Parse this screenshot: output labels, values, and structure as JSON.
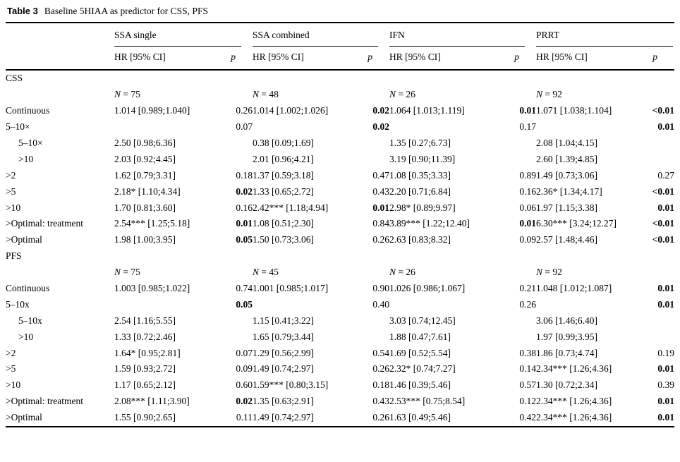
{
  "caption": {
    "label": "Table 3",
    "text": "Baseline 5HIAA as predictor for CSS, PFS"
  },
  "columns": {
    "groups": [
      "SSA single",
      "SSA combined",
      "IFN",
      "PRRT"
    ],
    "hr_header": "HR [95% CI]",
    "p_header": "p"
  },
  "sections": [
    {
      "label": "CSS",
      "n_values": [
        "N = 75",
        "N = 48",
        "N = 26",
        "N = 92"
      ],
      "rows": [
        {
          "label": "Continuous",
          "indent": false,
          "cells": [
            {
              "hr": "1.014 [0.989;1.040]",
              "p": "0.26",
              "bold": false
            },
            {
              "hr": "1.014 [1.002;1.026]",
              "p": "0.02",
              "bold": true
            },
            {
              "hr": "1.064 [1.013;1.119]",
              "p": "0.01",
              "bold": true
            },
            {
              "hr": "1.071 [1.038;1.104]",
              "p": "<0.01",
              "bold": true
            }
          ]
        },
        {
          "label": "5–10×",
          "indent": false,
          "cells": [
            {
              "hr": "",
              "p": "0.07",
              "bold": false
            },
            {
              "hr": "",
              "p": "0.02",
              "bold": true
            },
            {
              "hr": "",
              "p": "0.17",
              "bold": false
            },
            {
              "hr": "",
              "p": "0.01",
              "bold": true
            }
          ]
        },
        {
          "label": "5–10×",
          "indent": true,
          "cells": [
            {
              "hr": "2.50 [0.98;6.36]",
              "p": "",
              "bold": false
            },
            {
              "hr": "0.38 [0.09;1.69]",
              "p": "",
              "bold": false
            },
            {
              "hr": "1.35 [0.27;6.73]",
              "p": "",
              "bold": false
            },
            {
              "hr": "2.08 [1.04;4.15]",
              "p": "",
              "bold": false
            }
          ]
        },
        {
          "label": ">10",
          "indent": true,
          "cells": [
            {
              "hr": "2.03 [0.92;4.45]",
              "p": "",
              "bold": false
            },
            {
              "hr": "2.01 [0.96;4.21]",
              "p": "",
              "bold": false
            },
            {
              "hr": "3.19 [0.90;11.39]",
              "p": "",
              "bold": false
            },
            {
              "hr": "2.60 [1.39;4.85]",
              "p": "",
              "bold": false
            }
          ]
        },
        {
          "label": ">2",
          "indent": false,
          "cells": [
            {
              "hr": "1.62 [0.79;3.31]",
              "p": "0.18",
              "bold": false
            },
            {
              "hr": "1.37 [0.59;3.18]",
              "p": "0.47",
              "bold": false
            },
            {
              "hr": "1.08 [0.35;3.33]",
              "p": "0.89",
              "bold": false
            },
            {
              "hr": "1.49 [0.73;3.06]",
              "p": "0.27",
              "bold": false
            }
          ]
        },
        {
          "label": ">5",
          "indent": false,
          "cells": [
            {
              "hr": "2.18* [1.10;4.34]",
              "p": "0.02",
              "bold": true
            },
            {
              "hr": "1.33 [0.65;2.72]",
              "p": "0.43",
              "bold": false
            },
            {
              "hr": "2.20 [0.71;6.84]",
              "p": "0.16",
              "bold": false
            },
            {
              "hr": "2.36* [1.34;4.17]",
              "p": "<0.01",
              "bold": true
            }
          ]
        },
        {
          "label": ">10",
          "indent": false,
          "cells": [
            {
              "hr": "1.70 [0.81;3.60]",
              "p": "0.16",
              "bold": false
            },
            {
              "hr": "2.42*** [1.18;4.94]",
              "p": "0.01",
              "bold": true
            },
            {
              "hr": "2.98* [0.89;9.97]",
              "p": "0.06",
              "bold": false
            },
            {
              "hr": "1.97 [1.15;3.38]",
              "p": "0.01",
              "bold": true
            }
          ]
        },
        {
          "label": ">Optimal: treatment",
          "indent": false,
          "cells": [
            {
              "hr": "2.54*** [1.25;5.18]",
              "p": "0.01",
              "bold": true
            },
            {
              "hr": "1.08 [0.51;2.30]",
              "p": "0.84",
              "bold": false
            },
            {
              "hr": "3.89*** [1.22;12.40]",
              "p": "0.01",
              "bold": true
            },
            {
              "hr": "6.30*** [3.24;12.27]",
              "p": "<0.01",
              "bold": true
            }
          ]
        },
        {
          "label": ">Optimal",
          "indent": false,
          "cells": [
            {
              "hr": "1.98 [1.00;3.95]",
              "p": "0.05",
              "bold": true
            },
            {
              "hr": "1.50 [0.73;3.06]",
              "p": "0.26",
              "bold": false
            },
            {
              "hr": "2.63 [0.83;8.32]",
              "p": "0.09",
              "bold": false
            },
            {
              "hr": "2.57 [1.48;4.46]",
              "p": "<0.01",
              "bold": true
            }
          ]
        }
      ]
    },
    {
      "label": "PFS",
      "n_values": [
        "N = 75",
        "N = 45",
        "N = 26",
        "N = 92"
      ],
      "rows": [
        {
          "label": "Continuous",
          "indent": false,
          "cells": [
            {
              "hr": "1.003 [0.985;1.022]",
              "p": "0.74",
              "bold": false
            },
            {
              "hr": "1.001 [0.985;1.017]",
              "p": "0.90",
              "bold": false
            },
            {
              "hr": "1.026 [0.986;1.067]",
              "p": "0.21",
              "bold": false
            },
            {
              "hr": "1.048 [1.012;1.087]",
              "p": "0.01",
              "bold": true
            }
          ]
        },
        {
          "label": "5–10x",
          "indent": false,
          "cells": [
            {
              "hr": "",
              "p": "0.05",
              "bold": true
            },
            {
              "hr": "",
              "p": "0.40",
              "bold": false
            },
            {
              "hr": "",
              "p": "0.26",
              "bold": false
            },
            {
              "hr": "",
              "p": "0.01",
              "bold": true
            }
          ]
        },
        {
          "label": "5–10x",
          "indent": true,
          "cells": [
            {
              "hr": "2.54 [1.16;5.55]",
              "p": "",
              "bold": false
            },
            {
              "hr": "1.15 [0.41;3.22]",
              "p": "",
              "bold": false
            },
            {
              "hr": "3.03 [0.74;12.45]",
              "p": "",
              "bold": false
            },
            {
              "hr": "3.06 [1.46;6.40]",
              "p": "",
              "bold": false
            }
          ]
        },
        {
          "label": ">10",
          "indent": true,
          "cells": [
            {
              "hr": "1.33 [0.72;2.46]",
              "p": "",
              "bold": false
            },
            {
              "hr": "1.65 [0.79;3.44]",
              "p": "",
              "bold": false
            },
            {
              "hr": "1.88 [0.47;7.61]",
              "p": "",
              "bold": false
            },
            {
              "hr": "1.97 [0.99;3.95]",
              "p": "",
              "bold": false
            }
          ]
        },
        {
          "label": ">2",
          "indent": false,
          "cells": [
            {
              "hr": "1.64* [0.95;2.81]",
              "p": "0.07",
              "bold": false
            },
            {
              "hr": "1.29 [0.56;2.99]",
              "p": "0.54",
              "bold": false
            },
            {
              "hr": "1.69 [0.52;5.54]",
              "p": "0.38",
              "bold": false
            },
            {
              "hr": "1.86 [0.73;4.74]",
              "p": "0.19",
              "bold": false
            }
          ]
        },
        {
          "label": ">5",
          "indent": false,
          "cells": [
            {
              "hr": "1.59 [0.93;2.72]",
              "p": "0.09",
              "bold": false
            },
            {
              "hr": "1.49 [0.74;2.97]",
              "p": "0.26",
              "bold": false
            },
            {
              "hr": "2.32* [0.74;7.27]",
              "p": "0.14",
              "bold": false
            },
            {
              "hr": "2.34*** [1.26;4.36]",
              "p": "0.01",
              "bold": true
            }
          ]
        },
        {
          "label": ">10",
          "indent": false,
          "cells": [
            {
              "hr": "1.17 [0.65;2.12]",
              "p": "0.60",
              "bold": false
            },
            {
              "hr": "1.59*** [0.80;3.15]",
              "p": "0.18",
              "bold": false
            },
            {
              "hr": "1.46 [0.39;5.46]",
              "p": "0.57",
              "bold": false
            },
            {
              "hr": "1.30 [0.72;2.34]",
              "p": "0.39",
              "bold": false
            }
          ]
        },
        {
          "label": ">Optimal: treatment",
          "indent": false,
          "cells": [
            {
              "hr": "2.08*** [1.11;3.90]",
              "p": "0.02",
              "bold": true
            },
            {
              "hr": "1.35 [0.63;2.91]",
              "p": "0.43",
              "bold": false
            },
            {
              "hr": "2.53*** [0.75;8.54]",
              "p": "0.12",
              "bold": false
            },
            {
              "hr": "2.34*** [1.26;4.36]",
              "p": "0.01",
              "bold": true
            }
          ]
        },
        {
          "label": ">Optimal",
          "indent": false,
          "cells": [
            {
              "hr": "1.55 [0.90;2.65]",
              "p": "0.11",
              "bold": false
            },
            {
              "hr": "1.49 [0.74;2.97]",
              "p": "0.26",
              "bold": false
            },
            {
              "hr": "1.63 [0.49;5.46]",
              "p": "0.42",
              "bold": false
            },
            {
              "hr": "2.34*** [1.26;4.36]",
              "p": "0.01",
              "bold": true
            }
          ]
        }
      ]
    }
  ]
}
